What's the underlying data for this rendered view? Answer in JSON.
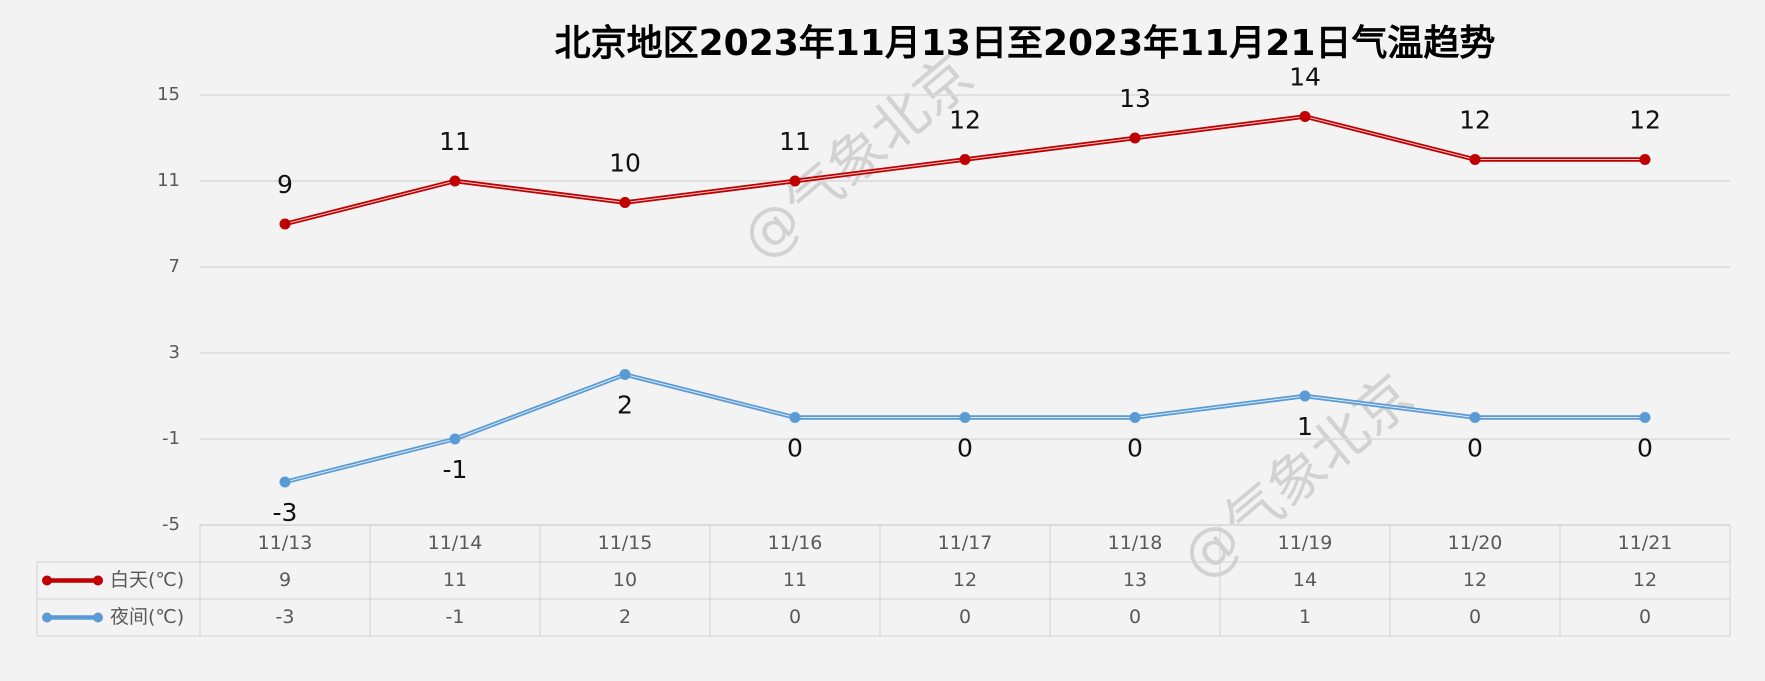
{
  "chart_data": {
    "type": "line",
    "title": "北京地区2023年11月13日至2023年11月21日气温趋势",
    "categories": [
      "11/13",
      "11/14",
      "11/15",
      "11/16",
      "11/17",
      "11/18",
      "11/19",
      "11/20",
      "11/21"
    ],
    "series": [
      {
        "name": "白天(℃)",
        "color": "#c00000",
        "values": [
          9,
          11,
          10,
          11,
          12,
          13,
          14,
          12,
          12
        ],
        "label_position": "above"
      },
      {
        "name": "夜间(℃)",
        "color": "#5b9bd5",
        "values": [
          -3,
          -1,
          2,
          0,
          0,
          0,
          1,
          0,
          0
        ],
        "label_position": "below"
      }
    ],
    "ylim": [
      -5,
      15
    ],
    "yticks": [
      -5,
      -1,
      3,
      7,
      11,
      15
    ],
    "grid": true,
    "watermark": "@气象北京"
  }
}
